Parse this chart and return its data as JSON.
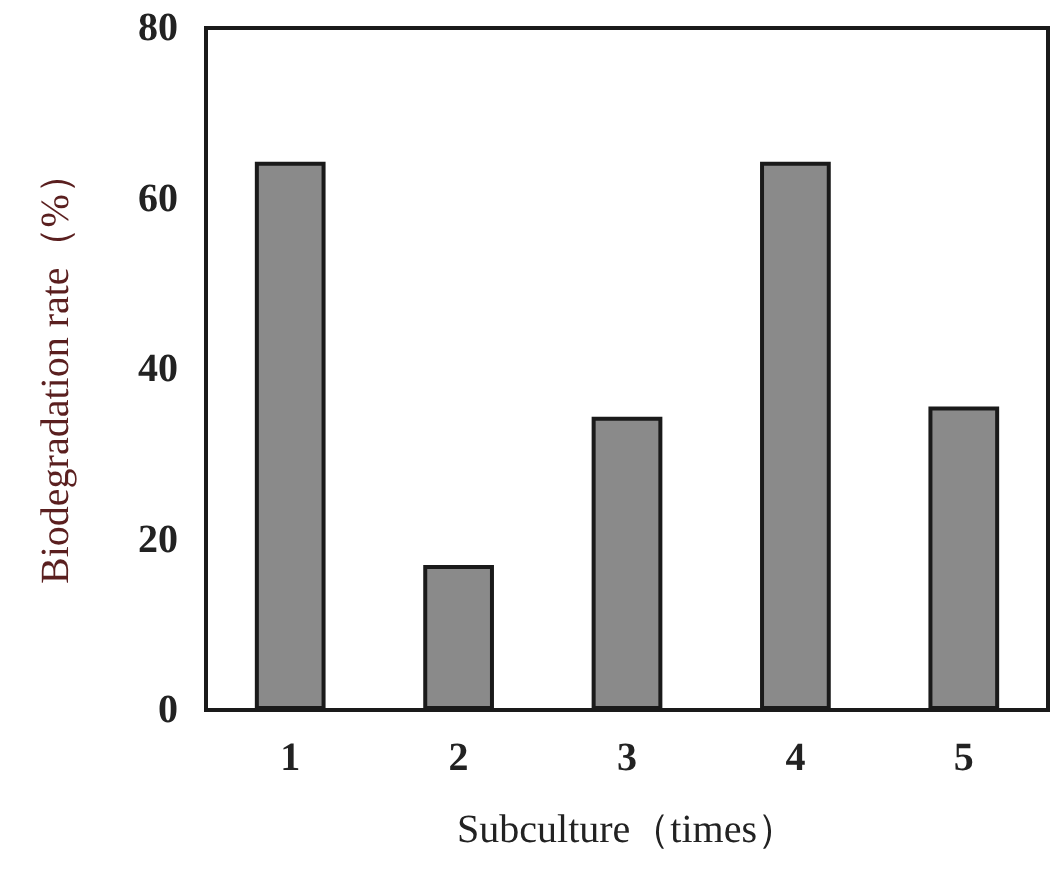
{
  "chart_data": {
    "type": "bar",
    "xlabel": "Subculture（times）",
    "ylabel": "Biodegradation rate（%）",
    "categories": [
      "1",
      "2",
      "3",
      "4",
      "5"
    ],
    "values": [
      64.3,
      17.0,
      34.4,
      64.3,
      35.6
    ],
    "color": "#8a8a8a",
    "ylim": [
      0,
      80
    ],
    "yticks": [
      0,
      20,
      40,
      60,
      80
    ],
    "grid": false
  }
}
